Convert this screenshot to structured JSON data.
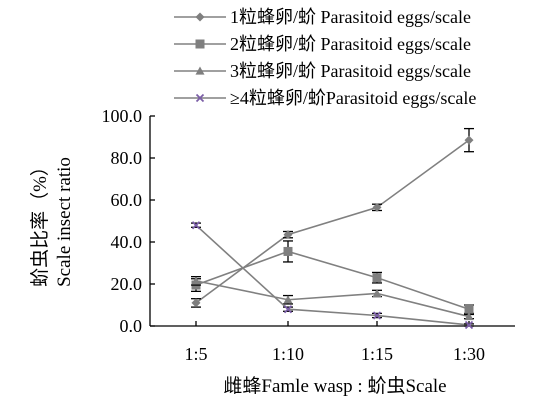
{
  "chart_data": {
    "type": "line",
    "title": "",
    "xlabel": "雌蜂Famle wasp : 蚧虫Scale",
    "ylabel_line1": "蚧虫比率（%）",
    "ylabel_line2": "Scale insect ratio",
    "categories": [
      "1:5",
      "1:10",
      "1:15",
      "1:30"
    ],
    "ylim": [
      0,
      100
    ],
    "yticks": [
      "0.0",
      "20.0",
      "40.0",
      "60.0",
      "80.0",
      "100.0"
    ],
    "grid": false,
    "legend_position": "top-right",
    "series": [
      {
        "name": "1粒蜂卵/蚧 Parasitoid eggs/scale",
        "marker": "diamond",
        "color": "#7f7f7f",
        "values": [
          11.0,
          43.5,
          56.5,
          88.5
        ],
        "errors": [
          2.0,
          1.5,
          1.5,
          5.5
        ]
      },
      {
        "name": "2粒蜂卵/蚧 Parasitoid eggs/scale",
        "marker": "square",
        "color": "#7f7f7f",
        "values": [
          19.5,
          35.5,
          23.0,
          8.0
        ],
        "errors": [
          3.0,
          5.0,
          2.5,
          2.0
        ]
      },
      {
        "name": "3粒蜂卵/蚧 Parasitoid eggs/scale",
        "marker": "triangle",
        "color": "#7f7f7f",
        "values": [
          21.5,
          12.5,
          15.5,
          4.5
        ],
        "errors": [
          2.0,
          2.0,
          1.5,
          1.0
        ]
      },
      {
        "name": "≥4粒蜂卵/蚧Parasitoid eggs/scale",
        "marker": "x",
        "color": "#7b5ea7",
        "values": [
          48.0,
          8.0,
          5.0,
          0.5
        ],
        "errors": [
          1.0,
          1.0,
          1.0,
          0.5
        ]
      }
    ]
  }
}
